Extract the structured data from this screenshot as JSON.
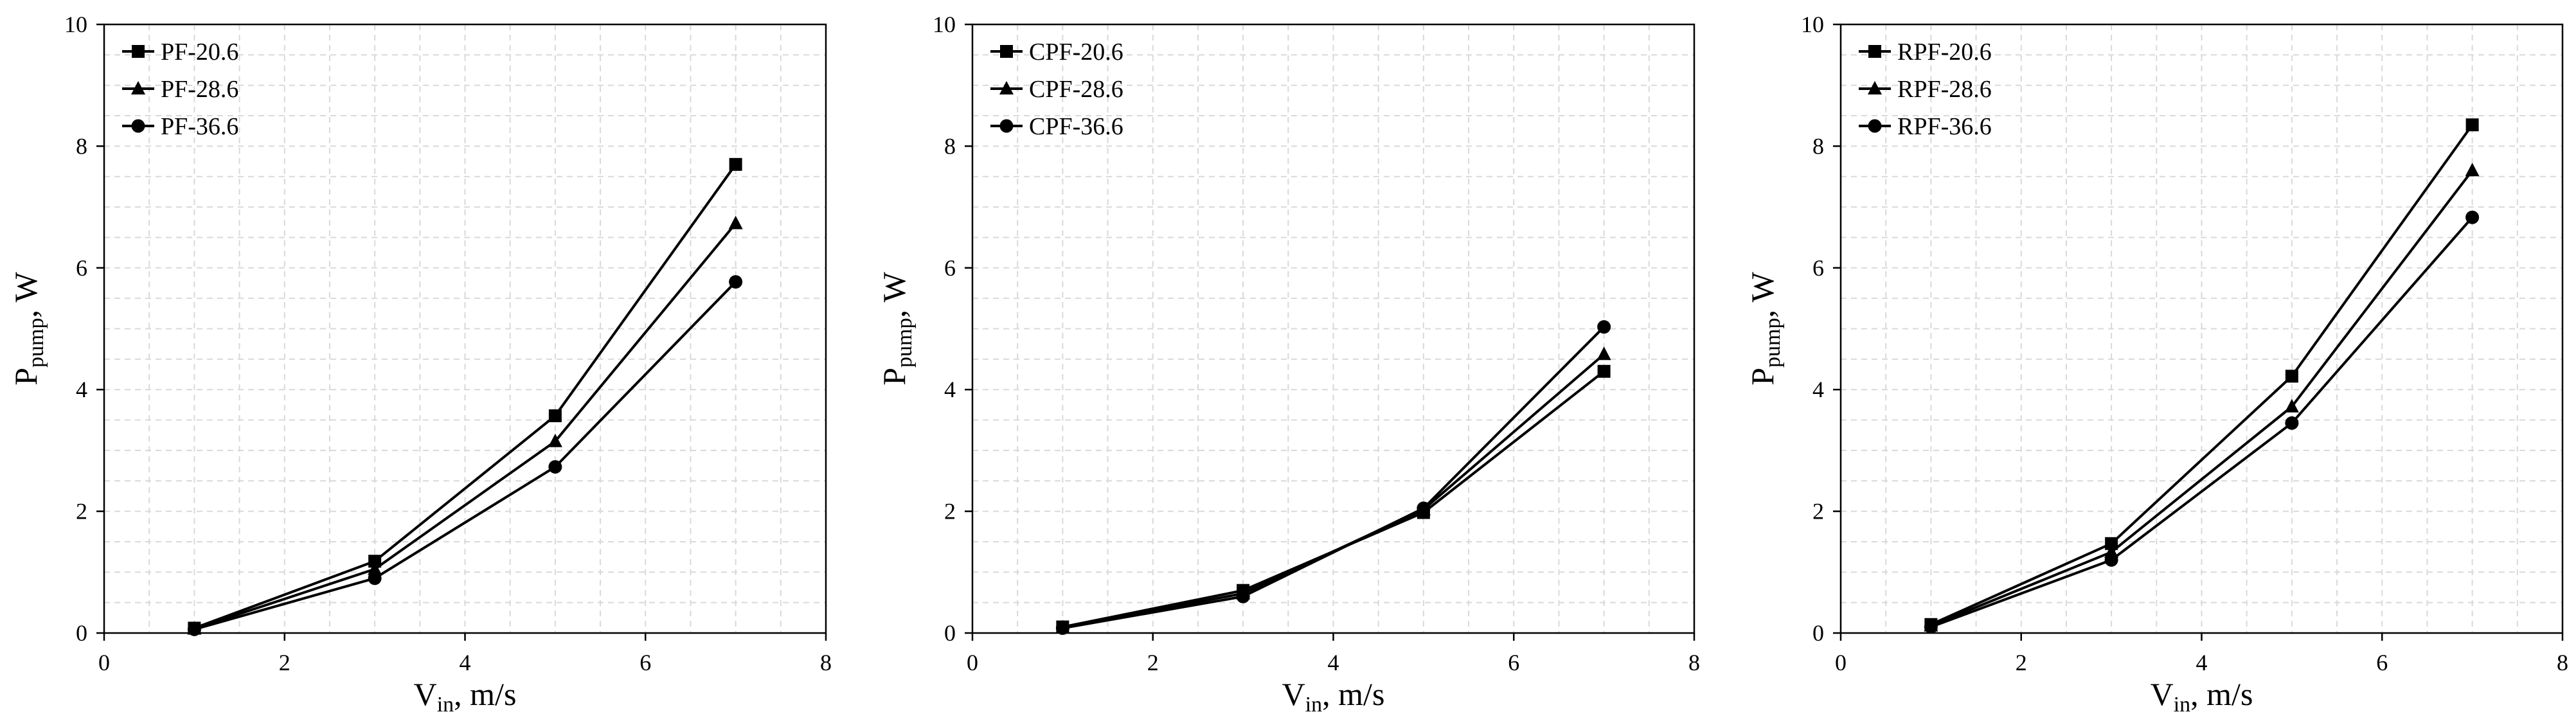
{
  "colors": {
    "background": "#ffffff",
    "line": "#000000",
    "grid": "#d9d9d9",
    "axis": "#000000"
  },
  "chart_data": [
    {
      "type": "line",
      "x": [
        1,
        3,
        5,
        7
      ],
      "xlim": [
        0,
        8
      ],
      "ylim": [
        0,
        10
      ],
      "xticks": [
        0,
        2,
        4,
        6,
        8
      ],
      "yticks": [
        0,
        2,
        4,
        6,
        8,
        10
      ],
      "xlabel": {
        "main": "V",
        "sub": "in",
        "rest": ", m/s"
      },
      "ylabel": {
        "main": "P",
        "sub": "pump",
        "rest": ", W"
      },
      "grid": true,
      "legend_position": "top-left",
      "series": [
        {
          "name": "PF-20.6",
          "marker": "square",
          "values": [
            0.08,
            1.18,
            3.57,
            7.7
          ]
        },
        {
          "name": "PF-28.6",
          "marker": "triangle",
          "values": [
            0.07,
            1.05,
            3.15,
            6.73
          ]
        },
        {
          "name": "PF-36.6",
          "marker": "circle",
          "values": [
            0.06,
            0.9,
            2.73,
            5.77
          ]
        }
      ]
    },
    {
      "type": "line",
      "x": [
        1,
        3,
        5,
        7
      ],
      "xlim": [
        0,
        8
      ],
      "ylim": [
        0,
        10
      ],
      "xticks": [
        0,
        2,
        4,
        6,
        8
      ],
      "yticks": [
        0,
        2,
        4,
        6,
        8,
        10
      ],
      "xlabel": {
        "main": "V",
        "sub": "in",
        "rest": ", m/s"
      },
      "ylabel": {
        "main": "P",
        "sub": "pump",
        "rest": ", W"
      },
      "grid": true,
      "legend_position": "top-left",
      "series": [
        {
          "name": "CPF-20.6",
          "marker": "square",
          "values": [
            0.1,
            0.7,
            1.98,
            4.3
          ]
        },
        {
          "name": "CPF-28.6",
          "marker": "triangle",
          "values": [
            0.09,
            0.65,
            2.03,
            4.58
          ]
        },
        {
          "name": "CPF-36.6",
          "marker": "circle",
          "values": [
            0.08,
            0.6,
            2.05,
            5.03
          ]
        }
      ]
    },
    {
      "type": "line",
      "x": [
        1,
        3,
        5,
        7
      ],
      "xlim": [
        0,
        8
      ],
      "ylim": [
        0,
        10
      ],
      "xticks": [
        0,
        2,
        4,
        6,
        8
      ],
      "yticks": [
        0,
        2,
        4,
        6,
        8,
        10
      ],
      "xlabel": {
        "main": "V",
        "sub": "in",
        "rest": ", m/s"
      },
      "ylabel": {
        "main": "P",
        "sub": "pump",
        "rest": ", W"
      },
      "grid": true,
      "legend_position": "top-left",
      "series": [
        {
          "name": "RPF-20.6",
          "marker": "square",
          "values": [
            0.14,
            1.47,
            4.22,
            8.35
          ]
        },
        {
          "name": "RPF-28.6",
          "marker": "triangle",
          "values": [
            0.12,
            1.33,
            3.72,
            7.6
          ]
        },
        {
          "name": "RPF-36.6",
          "marker": "circle",
          "values": [
            0.1,
            1.2,
            3.45,
            6.83
          ]
        }
      ]
    }
  ]
}
